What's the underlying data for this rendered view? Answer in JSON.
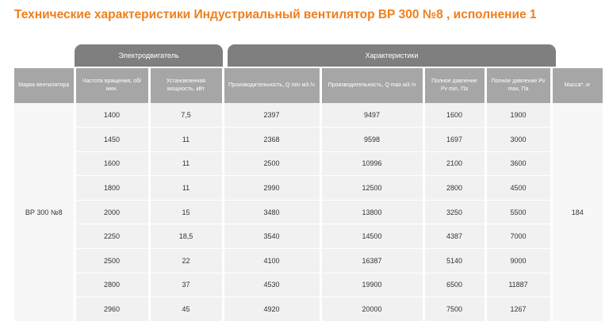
{
  "page": {
    "title": "Технические характеристики Индустриальный вентилятор ВР 300 №8 , исполнение 1"
  },
  "groups": {
    "motor": "Электродвигатель",
    "characteristics": "Характеристики"
  },
  "columns": [
    "Марка вентилятора",
    "Частота вращения, об/мин.",
    "Установленная мощность, кВт",
    "Производительность, Q min м3 /ч",
    "Производительность, Q max м3 /ч",
    "Полное давление Pv min, Па",
    "Полное давление Pv max, Па",
    "Масса*, кг"
  ],
  "brand": "ВР 300 №8",
  "mass": "184",
  "rows": [
    [
      "1400",
      "7,5",
      "2397",
      "9497",
      "1600",
      "1900"
    ],
    [
      "1450",
      "11",
      "2368",
      "9598",
      "1697",
      "3000"
    ],
    [
      "1600",
      "11",
      "2500",
      "10996",
      "2100",
      "3600"
    ],
    [
      "1800",
      "11",
      "2990",
      "12500",
      "2800",
      "4500"
    ],
    [
      "2000",
      "15",
      "3480",
      "13800",
      "3250",
      "5500"
    ],
    [
      "2250",
      "18,5",
      "3540",
      "14500",
      "4387",
      "7000"
    ],
    [
      "2500",
      "22",
      "4100",
      "16387",
      "5140",
      "9000"
    ],
    [
      "2800",
      "37",
      "4530",
      "19900",
      "6500",
      "11887"
    ],
    [
      "2960",
      "45",
      "4920",
      "20000",
      "7500",
      "1267"
    ]
  ]
}
